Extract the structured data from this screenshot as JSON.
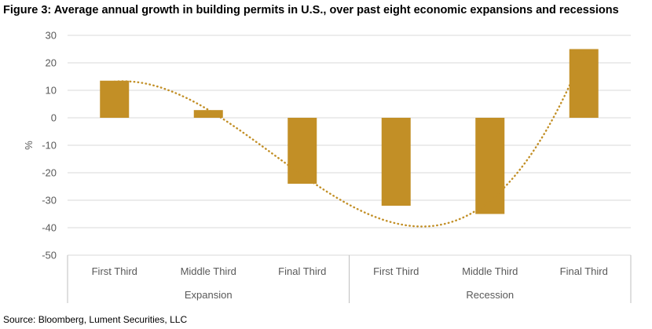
{
  "title": "Figure 3: Average annual growth in building permits in U.S., over past eight economic expansions and recessions",
  "source": "Source: Bloomberg, Lument Securities, LLC",
  "colors": {
    "bar": "#C28F26",
    "trend": "#C28F26",
    "grid": "#D9D9D9",
    "axis": "#BFBFBF",
    "text": "#595959"
  },
  "chart_data": {
    "type": "bar",
    "title": "Figure 3: Average annual growth in building permits in U.S., over past eight economic expansions and recessions",
    "ylabel": "%",
    "xlabel": "",
    "ylim": [
      -50,
      30
    ],
    "yticks": [
      30,
      20,
      10,
      0,
      -10,
      -20,
      -30,
      -40,
      -50
    ],
    "grid": true,
    "groups": [
      {
        "name": "Expansion",
        "categories": [
          "First Third",
          "Middle Third",
          "Final Third"
        ]
      },
      {
        "name": "Recession",
        "categories": [
          "First Third",
          "Middle Third",
          "Final Third"
        ]
      }
    ],
    "categories": [
      "First Third",
      "Middle Third",
      "Final Third",
      "First Third",
      "Middle Third",
      "Final Third"
    ],
    "values": [
      13.5,
      2.8,
      -24,
      -32,
      -35,
      25
    ],
    "trendline": {
      "type": "polynomial",
      "style": "dotted"
    }
  }
}
